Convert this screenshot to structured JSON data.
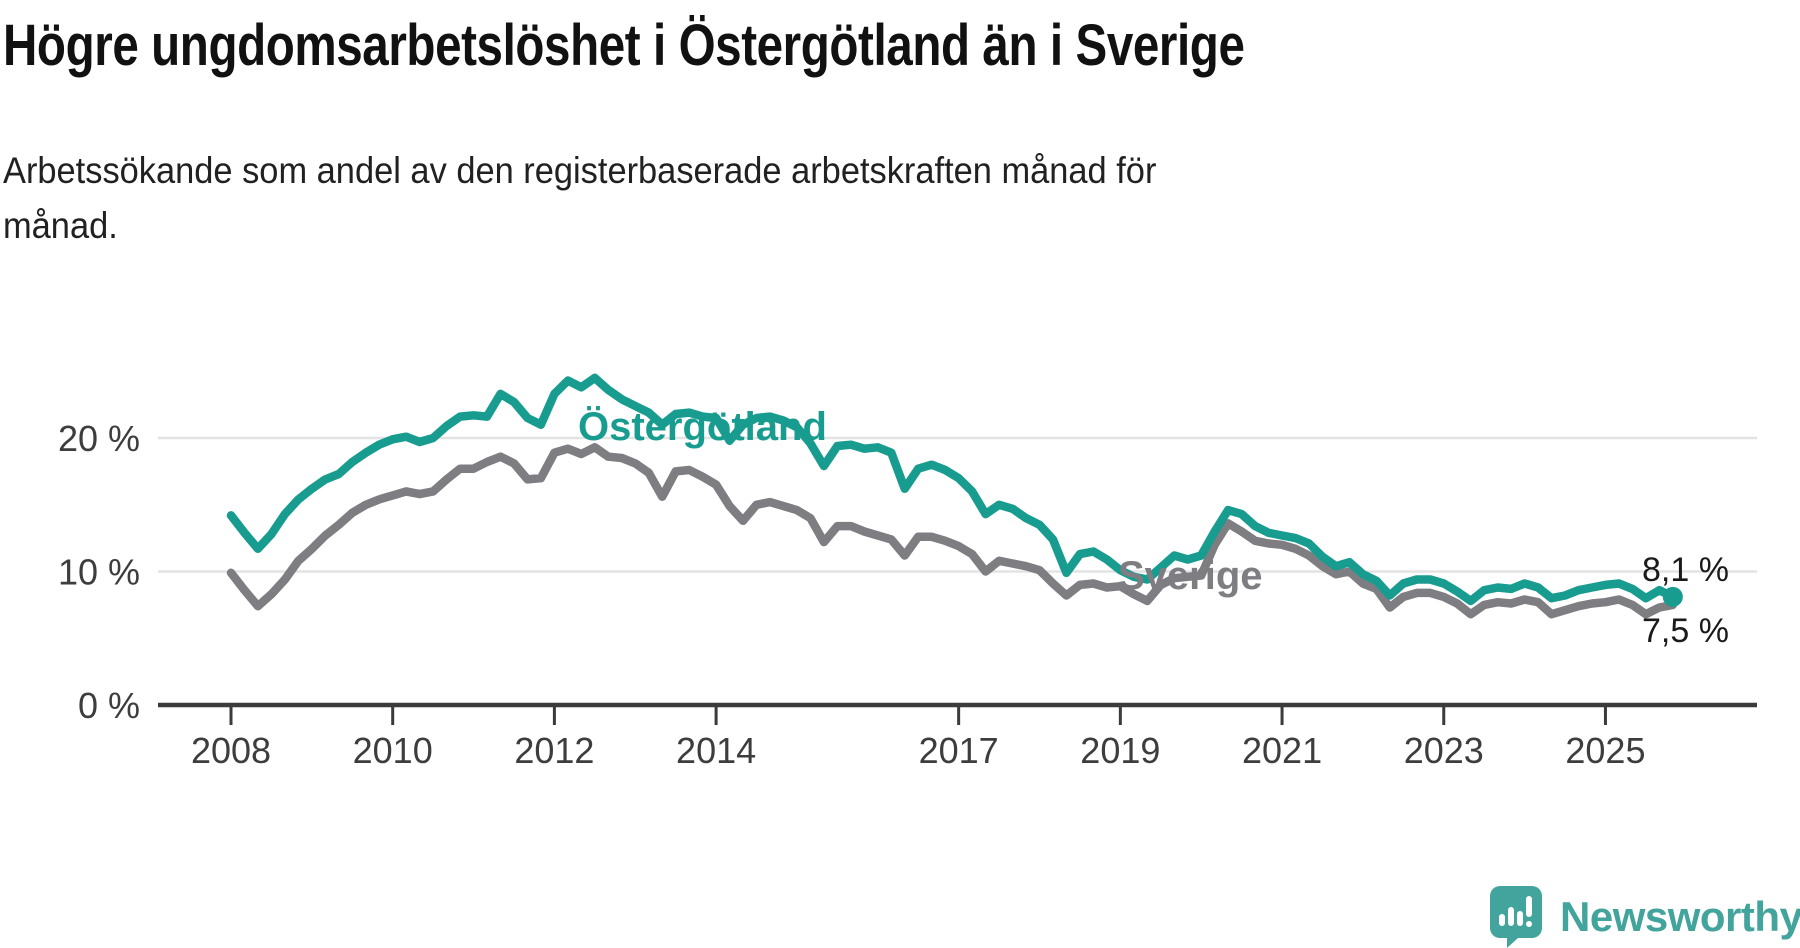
{
  "title": "Högre ungdomsarbetslöshet i Östergötland än i Sverige",
  "subtitle": "Arbetssökande som andel av den registerbaserade arbetskraften månad för månad.",
  "subtitle_lines": [
    "Arbetssökande som andel av den registerbaserade arbetskraften månad för",
    "månad."
  ],
  "colors": {
    "ostergotland": "#189c8f",
    "sverige": "#7d7d82",
    "grid": "#e3e3e3",
    "axis": "#3b3b3b",
    "tick_text": "#3d3d3d",
    "title_text": "#111111",
    "logo": "#42a49c"
  },
  "logo": {
    "text": "Newsworthy",
    "icon": "newsworthy-speech-bubble-bar-chart"
  },
  "chart_data": {
    "type": "line",
    "x_start_year": 2008,
    "x_points_per_year": 6,
    "x_end_year": 2025.83,
    "ylim": [
      0,
      26
    ],
    "grid": "horizontal",
    "legend_position": "inline-labels",
    "yticks": [
      {
        "value": 0,
        "label": "0 %"
      },
      {
        "value": 10,
        "label": "10 %"
      },
      {
        "value": 20,
        "label": "20 %"
      }
    ],
    "xticks": [
      {
        "year": 2008,
        "label": "2008"
      },
      {
        "year": 2010,
        "label": "2010"
      },
      {
        "year": 2012,
        "label": "2012"
      },
      {
        "year": 2014,
        "label": "2014"
      },
      {
        "year": 2017,
        "label": "2017"
      },
      {
        "year": 2019,
        "label": "2019"
      },
      {
        "year": 2021,
        "label": "2021"
      },
      {
        "year": 2023,
        "label": "2023"
      },
      {
        "year": 2025,
        "label": "2025"
      }
    ],
    "series": [
      {
        "name": "Sverige",
        "label": "Sverige",
        "color": "#7d7d82",
        "end_label": "7,5 %",
        "end_value": 7.5,
        "end_marker": false,
        "values": [
          9.9,
          8.6,
          7.4,
          8.3,
          9.4,
          10.8,
          11.7,
          12.7,
          13.5,
          14.4,
          15.0,
          15.4,
          15.7,
          16.0,
          15.8,
          16.0,
          16.9,
          17.7,
          17.7,
          18.2,
          18.6,
          18.1,
          16.9,
          17.0,
          18.9,
          19.2,
          18.8,
          19.3,
          18.6,
          18.5,
          18.1,
          17.4,
          15.6,
          17.5,
          17.6,
          17.1,
          16.5,
          14.9,
          13.8,
          15.0,
          15.2,
          14.9,
          14.6,
          14.0,
          12.2,
          13.4,
          13.4,
          13.0,
          12.7,
          12.4,
          11.2,
          12.6,
          12.6,
          12.3,
          11.9,
          11.3,
          10.0,
          10.8,
          10.6,
          10.4,
          10.1,
          9.1,
          8.2,
          9.0,
          9.1,
          8.8,
          8.9,
          8.3,
          7.8,
          9.0,
          9.5,
          9.6,
          9.7,
          12.0,
          13.6,
          13.0,
          12.3,
          12.1,
          12.0,
          11.7,
          11.2,
          10.4,
          9.8,
          10.0,
          9.1,
          8.7,
          7.3,
          8.1,
          8.4,
          8.4,
          8.1,
          7.6,
          6.8,
          7.5,
          7.7,
          7.6,
          7.9,
          7.7,
          6.8,
          7.1,
          7.4,
          7.6,
          7.7,
          7.9,
          7.5,
          6.8,
          7.3,
          7.5
        ]
      },
      {
        "name": "Östergötland",
        "label": "Östergötland",
        "color": "#189c8f",
        "end_label": "8,1 %",
        "end_value": 8.1,
        "end_marker": true,
        "values": [
          14.2,
          12.9,
          11.7,
          12.8,
          14.3,
          15.4,
          16.2,
          16.9,
          17.3,
          18.2,
          18.9,
          19.5,
          19.9,
          20.1,
          19.7,
          20.0,
          20.9,
          21.6,
          21.7,
          21.6,
          23.3,
          22.7,
          21.5,
          21.0,
          23.3,
          24.3,
          23.8,
          24.5,
          23.6,
          22.9,
          22.4,
          21.9,
          21.0,
          21.8,
          21.9,
          21.6,
          21.5,
          19.8,
          21.0,
          21.5,
          21.6,
          21.3,
          20.8,
          19.6,
          17.9,
          19.4,
          19.5,
          19.2,
          19.3,
          18.9,
          16.2,
          17.7,
          18.0,
          17.6,
          17.0,
          16.0,
          14.3,
          15.0,
          14.7,
          14.0,
          13.5,
          12.4,
          9.9,
          11.3,
          11.5,
          10.9,
          10.1,
          9.6,
          9.4,
          10.3,
          11.2,
          10.9,
          11.2,
          13.0,
          14.6,
          14.3,
          13.4,
          12.9,
          12.7,
          12.5,
          12.1,
          11.1,
          10.4,
          10.7,
          9.8,
          9.3,
          8.2,
          9.1,
          9.4,
          9.4,
          9.1,
          8.5,
          7.8,
          8.6,
          8.8,
          8.7,
          9.1,
          8.8,
          8.0,
          8.2,
          8.6,
          8.8,
          9.0,
          9.1,
          8.7,
          8.0,
          8.6,
          8.1
        ]
      }
    ]
  }
}
